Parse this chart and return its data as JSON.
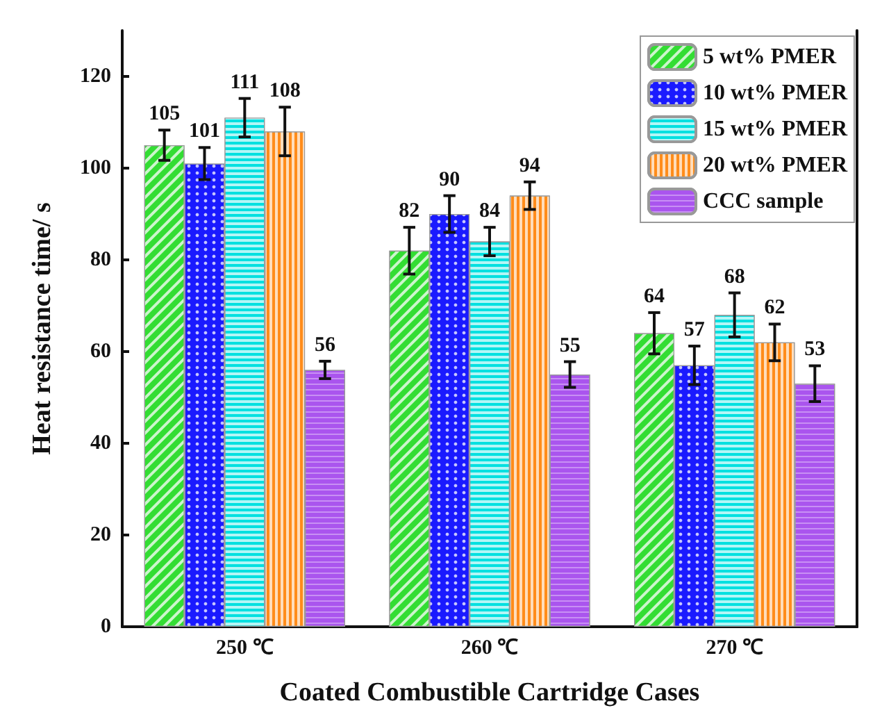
{
  "chart_data": {
    "type": "bar",
    "xlabel": "Coated Combustible Cartridge Cases",
    "ylabel": "Heat resistance time/ s",
    "categories": [
      "250 ℃",
      "260 ℃",
      "270 ℃"
    ],
    "series": [
      {
        "name": "5 wt% PMER",
        "color": "#33dd33",
        "values": [
          105,
          82,
          64
        ],
        "errors": [
          3.3,
          5.1,
          4.5
        ]
      },
      {
        "name": "10 wt% PMER",
        "color": "#1a1aff",
        "values": [
          101,
          90,
          57
        ],
        "errors": [
          3.5,
          4,
          4.2
        ]
      },
      {
        "name": "15 wt% PMER",
        "color": "#00e0e0",
        "values": [
          111,
          84,
          68
        ],
        "errors": [
          4.2,
          3.1,
          4.8
        ]
      },
      {
        "name": "20 wt% PMER",
        "color": "#ff8c1a",
        "values": [
          108,
          94,
          62
        ],
        "errors": [
          5.3,
          3,
          4
        ]
      },
      {
        "name": "CCC sample",
        "color": "#aa55ee",
        "values": [
          56,
          55,
          53
        ],
        "errors": [
          1.9,
          2.8,
          3.9
        ]
      }
    ],
    "ylim": [
      0,
      130
    ],
    "yticks": [
      0,
      20,
      40,
      60,
      80,
      100,
      120
    ],
    "data_labels": true,
    "legend": "top right",
    "grid": false
  }
}
